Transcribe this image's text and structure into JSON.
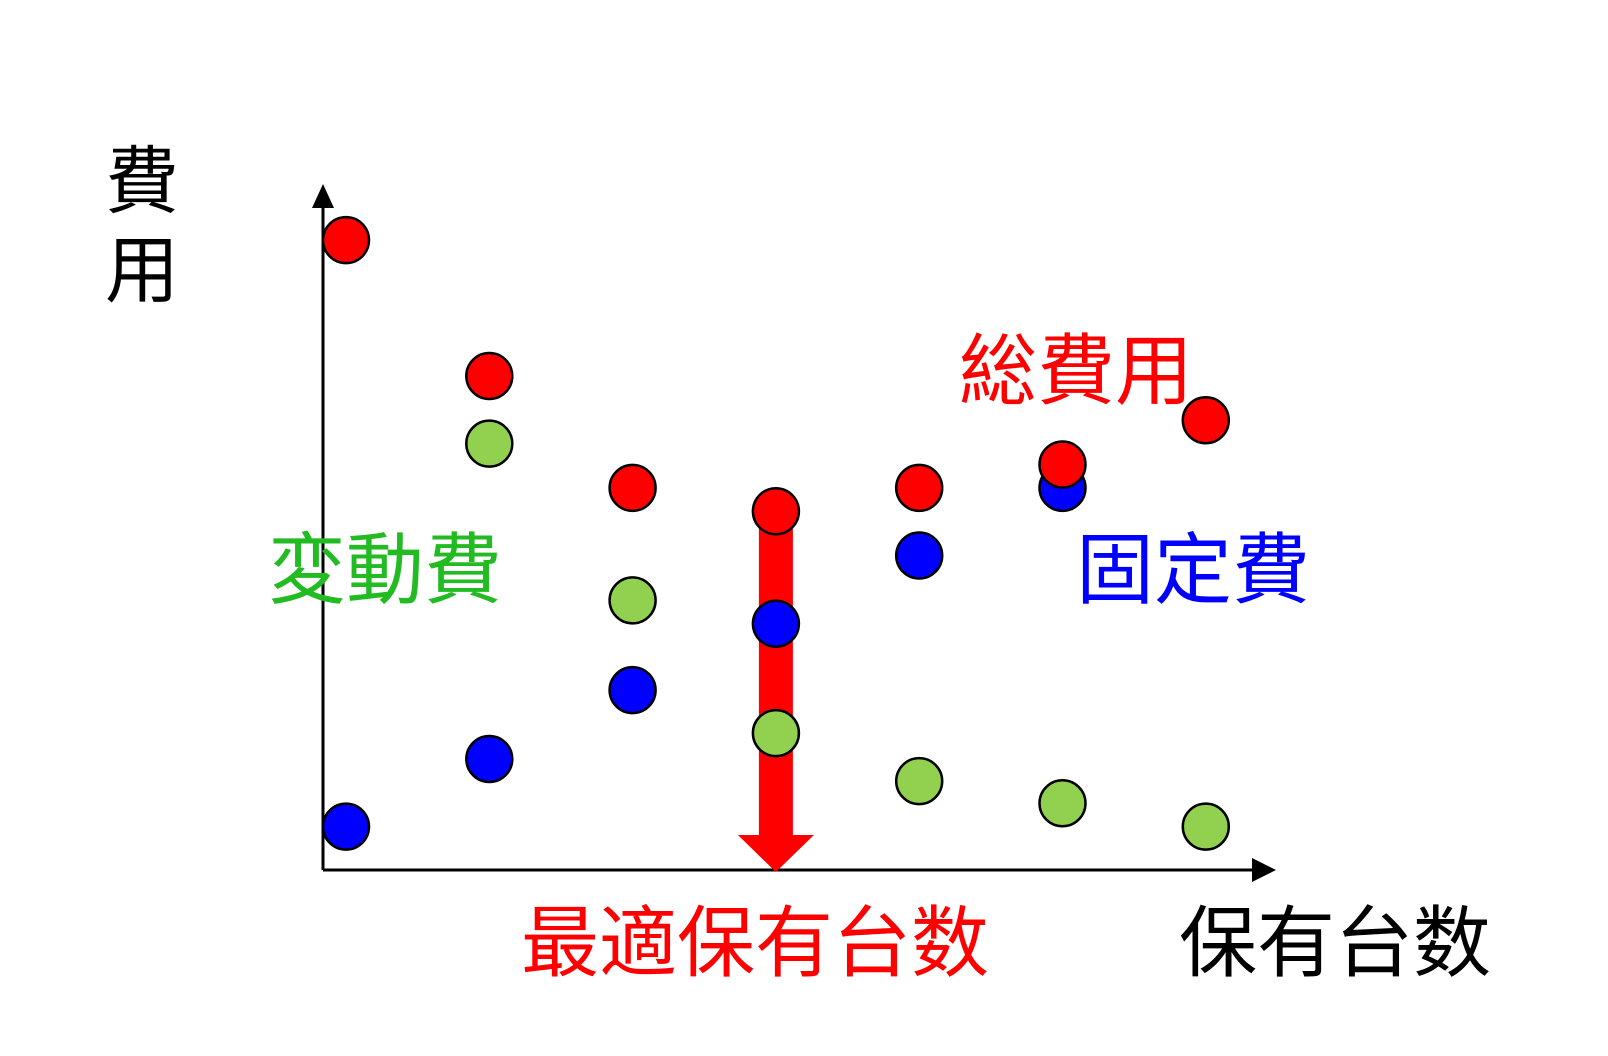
{
  "chart_data": {
    "type": "scatter",
    "title": "",
    "xlabel": "保有台数",
    "ylabel": "費用",
    "x_categories": [
      0,
      1,
      2,
      3,
      4,
      5,
      6
    ],
    "ylim": [
      0,
      100
    ],
    "grid": false,
    "series": [
      {
        "name": "総費用",
        "color": "#ff0000",
        "label_color": "#ff0000",
        "values": [
          96.5,
          75.0,
          57.3,
          53.6,
          57.3,
          61.0,
          68.0
        ]
      },
      {
        "name": "変動費",
        "color": "#92d050",
        "label_color": "#22bb22",
        "values": [
          64.3,
          39.5,
          18.5,
          10.9,
          7.4,
          3.7
        ]
      },
      {
        "name": "固定費",
        "color": "#0000ff",
        "label_color": "#0000ff",
        "values": [
          3.7,
          14.4,
          25.3,
          35.8,
          46.6,
          57.3
        ]
      }
    ],
    "series_x": {
      "総費用": [
        0,
        1,
        2,
        3,
        4,
        5,
        6
      ],
      "変動費": [
        1,
        2,
        3,
        4,
        5,
        6
      ],
      "固定費": [
        0,
        1,
        2,
        3,
        4,
        5
      ]
    },
    "annotation": {
      "text": "最適保有台数",
      "x": 3,
      "color": "#ff0000"
    }
  }
}
